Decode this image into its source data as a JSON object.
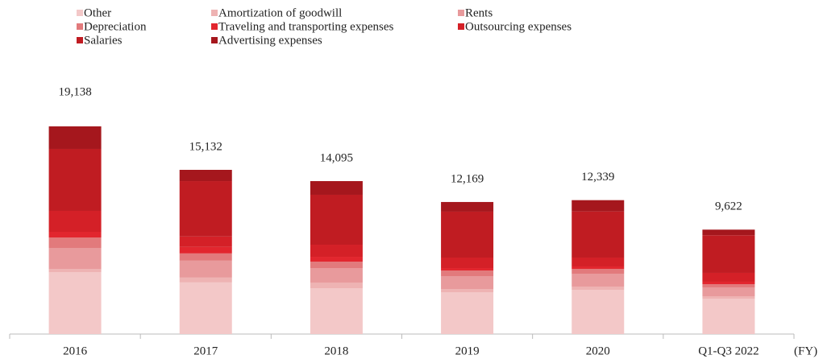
{
  "chart_data": {
    "type": "stacked_bar",
    "categories": [
      "2016",
      "2017",
      "2018",
      "2019",
      "2020",
      "Q1-Q3 2022"
    ],
    "x_unit_label": "(FY)",
    "series": [
      {
        "name": "Other",
        "color": "#f3c8c8",
        "values": [
          5712,
          4755,
          4228,
          3857,
          4080,
          3264
        ]
      },
      {
        "name": "Amortization of goodwill",
        "color": "#eeb3b3",
        "values": [
          297,
          446,
          519,
          297,
          297,
          223
        ]
      },
      {
        "name": "Rents",
        "color": "#e89a9c",
        "values": [
          1929,
          1560,
          1335,
          1187,
          1187,
          816
        ]
      },
      {
        "name": "Depreciation",
        "color": "#e27a7c",
        "values": [
          964,
          669,
          593,
          519,
          445,
          297
        ]
      },
      {
        "name": "Traveling and transporting expenses",
        "color": "#e2262e",
        "values": [
          519,
          594,
          445,
          223,
          223,
          223
        ]
      },
      {
        "name": "Outsourcing expenses",
        "color": "#d42027",
        "values": [
          1929,
          966,
          1113,
          964,
          816,
          816
        ]
      },
      {
        "name": "Salaries",
        "color": "#c01c22",
        "values": [
          5712,
          5102,
          4601,
          4232,
          4252,
          3464
        ]
      },
      {
        "name": "Advertising expenses",
        "color": "#a5171d",
        "values": [
          2076,
          1040,
          1261,
          890,
          1039,
          519
        ]
      }
    ],
    "totals": [
      19138,
      15132,
      14095,
      12169,
      12339,
      9622
    ],
    "total_labels": [
      "19,138",
      "15,132",
      "14,095",
      "12,169",
      "12,339",
      "9,622"
    ]
  }
}
